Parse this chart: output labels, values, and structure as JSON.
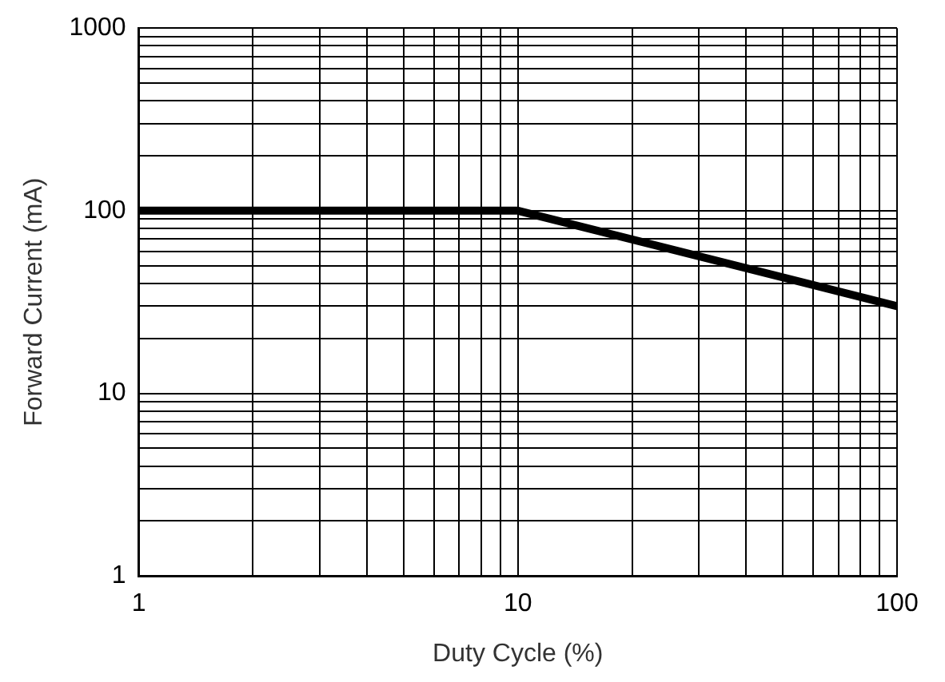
{
  "chart_data": {
    "type": "line",
    "xlabel": "Duty Cycle (%)",
    "ylabel": "Forward Current (mA)",
    "x": [
      1,
      10,
      100
    ],
    "series": [
      {
        "color": "#000000",
        "values": [
          100,
          100,
          30
        ]
      }
    ],
    "log": "xy",
    "grid": true,
    "legend": false,
    "marker": "none",
    "line_style": "solid",
    "xlim": [
      1,
      100
    ],
    "ylim": [
      1,
      1000
    ],
    "xticks": [
      1,
      {
        "value": 2,
        "label": null
      },
      {
        "value": 3,
        "label": null
      },
      {
        "value": 4,
        "label": null
      },
      {
        "value": 5,
        "label": null
      },
      {
        "value": 6,
        "label": null
      },
      {
        "value": 7,
        "label": null
      },
      {
        "value": 8,
        "label": null
      },
      {
        "value": 9,
        "label": null
      },
      10,
      {
        "value": 20,
        "label": null
      },
      {
        "value": 30,
        "label": null
      },
      {
        "value": 40,
        "label": null
      },
      {
        "value": 50,
        "label": null
      },
      {
        "value": 60,
        "label": null
      },
      {
        "value": 70,
        "label": null
      },
      {
        "value": 80,
        "label": null
      },
      {
        "value": 90,
        "label": null
      },
      100
    ],
    "yticks": [
      1,
      {
        "value": 2,
        "label": null
      },
      {
        "value": 3,
        "label": null
      },
      {
        "value": 4,
        "label": null
      },
      {
        "value": 5,
        "label": null
      },
      {
        "value": 6,
        "label": null
      },
      {
        "value": 7,
        "label": null
      },
      {
        "value": 8,
        "label": null
      },
      {
        "value": 9,
        "label": null
      },
      10,
      {
        "value": 20,
        "label": null
      },
      {
        "value": 30,
        "label": null
      },
      {
        "value": 40,
        "label": null
      },
      {
        "value": 50,
        "label": null
      },
      {
        "value": 60,
        "label": null
      },
      {
        "value": 70,
        "label": null
      },
      {
        "value": 80,
        "label": null
      },
      {
        "value": 90,
        "label": null
      },
      100,
      {
        "value": 200,
        "label": null
      },
      {
        "value": 300,
        "label": null
      },
      {
        "value": 400,
        "label": null
      },
      {
        "value": 500,
        "label": null
      },
      {
        "value": 600,
        "label": null
      },
      {
        "value": 700,
        "label": null
      },
      {
        "value": 800,
        "label": null
      },
      {
        "value": 900,
        "label": null
      },
      1000
    ]
  }
}
